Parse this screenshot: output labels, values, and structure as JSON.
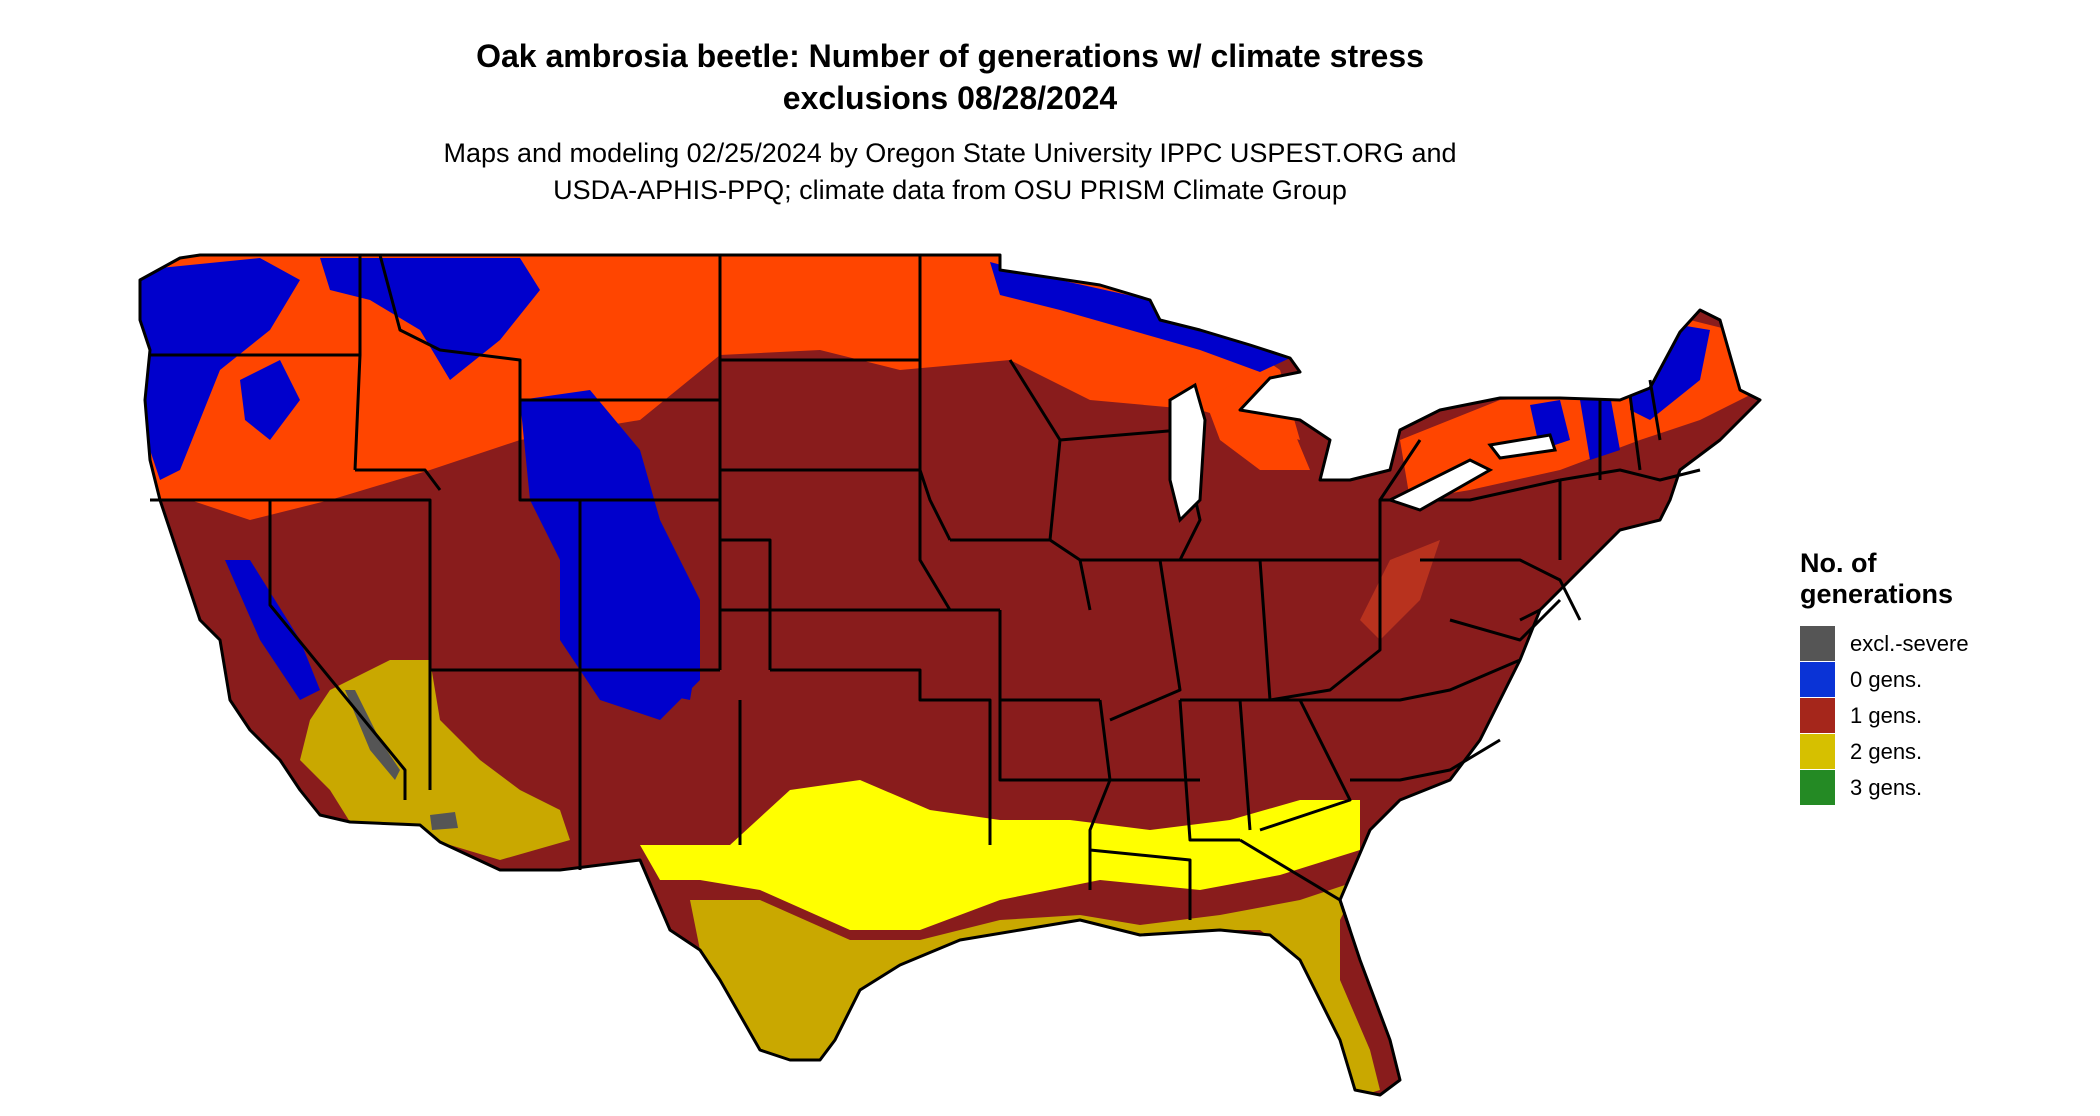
{
  "map": {
    "title_line1": "Oak ambrosia beetle: Number of generations w/ climate stress",
    "title_line2": "exclusions 08/28/2024",
    "subtitle_line1": "Maps and modeling 02/25/2024 by Oregon State University IPPC USPEST.ORG and",
    "subtitle_line2": "USDA-APHIS-PPQ; climate data from OSU PRISM Climate Group"
  },
  "legend": {
    "title_line1": "No. of",
    "title_line2": "generations",
    "items": [
      {
        "label": "excl.-severe",
        "color": "#555555"
      },
      {
        "label": "0 gens.",
        "color": "#0a33d6"
      },
      {
        "label": "1 gens.",
        "color": "#a5261b"
      },
      {
        "label": "2 gens.",
        "color": "#d6c000"
      },
      {
        "label": "3 gens.",
        "color": "#248a24"
      }
    ]
  },
  "colors": {
    "one_gen_map": "#891c1c",
    "zero_gen_map": "#0000cc",
    "transition_orange": "#ff4500",
    "two_gen_map": "#c9a800",
    "two_gen_bright": "#ffff00",
    "excl_severe_map": "#555555",
    "state_border": "#000000"
  }
}
